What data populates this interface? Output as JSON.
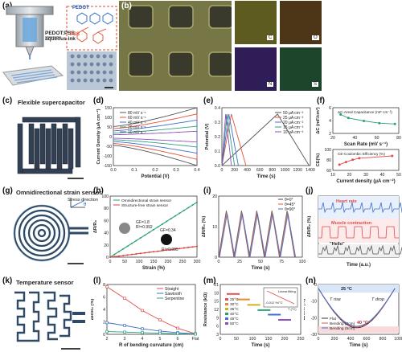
{
  "labels": {
    "a": "(a)",
    "b": "(b)",
    "c": "(c)",
    "d": "(d)",
    "e": "(e)",
    "f": "(f)",
    "g": "(g)",
    "h": "(h)",
    "i": "(i)",
    "j": "(j)",
    "k": "(k)",
    "l": "(l)",
    "m": "(m)",
    "n": "(n)"
  },
  "a": {
    "ink": "PEDOT:PSS aqueous ink",
    "pedot": "PEDOT",
    "pss": "PSS"
  },
  "b": {
    "maps": [
      "C",
      "O",
      "N",
      "S"
    ]
  },
  "c": {
    "title": "Flexible supercapacitor"
  },
  "g": {
    "title": "Omnidirectional strain sensor",
    "stress": "Stress direction",
    "theta": "θ"
  },
  "k": {
    "title": "Temperature sensor"
  },
  "chart_data": [
    {
      "panel": "d",
      "type": "line",
      "xlabel": "Potential (V)",
      "ylabel": "Current Density (μA cm⁻²)",
      "xticks": [
        "0.0",
        "0.1",
        "0.2",
        "0.3",
        "0.4"
      ],
      "yticks": [
        "-150",
        "-100",
        "-50",
        "0",
        "50",
        "100",
        "150"
      ],
      "xlim": [
        0,
        0.4
      ],
      "ylim": [
        -150,
        150
      ],
      "series": [
        {
          "name": "80 mV s⁻¹",
          "color": "#555555",
          "peak": 150
        },
        {
          "name": "60 mV s⁻¹",
          "color": "#e0553a",
          "peak": 118
        },
        {
          "name": "40 mV s⁻¹",
          "color": "#3d6fcf",
          "peak": 86
        },
        {
          "name": "20 mV s⁻¹",
          "color": "#2aa07a",
          "peak": 54
        },
        {
          "name": "10 mV s⁻¹",
          "color": "#8a4fbf",
          "peak": 28
        }
      ]
    },
    {
      "panel": "e",
      "type": "line",
      "xlabel": "Time (s)",
      "ylabel": "Potential (V)",
      "xticks": [
        "0",
        "200",
        "400",
        "600",
        "800",
        "1000",
        "1200",
        "1400"
      ],
      "yticks": [
        "0.0",
        "0.1",
        "0.2",
        "0.3",
        "0.4"
      ],
      "xlim": [
        0,
        1400
      ],
      "ylim": [
        0,
        0.45
      ],
      "series": [
        {
          "name": "50 μA cm⁻²",
          "color": "#555555",
          "t": [
            880,
            1380
          ]
        },
        {
          "name": "25 μA cm⁻²",
          "color": "#e0553a",
          "t": [
            150,
            380
          ]
        },
        {
          "name": "20 μA cm⁻²",
          "color": "#3d6fcf",
          "t": [
            110,
            260
          ]
        },
        {
          "name": "15 μA cm⁻²",
          "color": "#2aa07a",
          "t": [
            80,
            200
          ]
        },
        {
          "name": "10 μA cm⁻²",
          "color": "#8a4fbf",
          "t": [
            60,
            150
          ]
        }
      ]
    },
    {
      "panel": "f-top",
      "type": "line",
      "xlabel": "Scan Rate (mV s⁻¹)",
      "ylabel": "ΔC (mF/cm²)",
      "legend": "ΔC-Areal Capacitance (mF cm⁻²)",
      "xticks": [
        "20",
        "40",
        "60",
        "80"
      ],
      "yticks": [
        "2",
        "4",
        "6"
      ],
      "x": [
        10,
        20,
        40,
        60,
        80
      ],
      "y": [
        5.4,
        4.6,
        3.9,
        3.4,
        3.2
      ],
      "xlim": [
        0,
        85
      ],
      "ylim": [
        1,
        7
      ]
    },
    {
      "panel": "f-bottom",
      "type": "line",
      "xlabel": "Current density (μA cm⁻²)",
      "ylabel": "CE(%)",
      "legend": "CE-Coulombic Efficiency (%)",
      "xticks": [
        "10",
        "20",
        "30",
        "40",
        "50"
      ],
      "yticks": [
        "60",
        "80",
        "100"
      ],
      "x": [
        10,
        15,
        20,
        25,
        50
      ],
      "y": [
        65,
        72,
        78,
        82,
        88
      ],
      "xlim": [
        5,
        55
      ],
      "ylim": [
        50,
        105
      ]
    },
    {
      "panel": "h",
      "type": "line",
      "xlabel": "Strain (%)",
      "ylabel": "ΔR/R₀",
      "xticks": [
        "0",
        "50",
        "100",
        "150",
        "200",
        "250",
        "300"
      ],
      "yticks": [
        "0",
        "20",
        "40",
        "60",
        "80",
        "100"
      ],
      "xlim": [
        0,
        300
      ],
      "ylim": [
        0,
        110
      ],
      "legend": [
        "Omnidirectional strain sensor",
        "Structure-free strain sensor"
      ],
      "annotations": [
        "GF=1.8",
        "R²=0.992",
        "GF=0.34",
        "R²=0.995"
      ],
      "series": [
        {
          "name": "Omnidirectional strain sensor",
          "color": "#2aa07a",
          "slope": 0.33
        },
        {
          "name": "Structure-free strain sensor",
          "color": "#d94040",
          "slope": 0.065
        }
      ]
    },
    {
      "panel": "i",
      "type": "line",
      "xlabel": "Time (s)",
      "ylabel": "ΔR/R₀ (%)",
      "xticks": [
        "0",
        "25",
        "50",
        "75",
        "100"
      ],
      "yticks": [
        "0",
        "10",
        "20"
      ],
      "xlim": [
        0,
        110
      ],
      "ylim": [
        0,
        25
      ],
      "legend": [
        "θ=0°",
        "θ=45°",
        "θ=90°"
      ],
      "colors": [
        "#444444",
        "#e0553a",
        "#3d6fcf"
      ],
      "cycles": 5,
      "peak": 19
    },
    {
      "panel": "j",
      "type": "line",
      "xlabel": "Time (a.u.)",
      "ylabel": "ΔR/R₀ (%)",
      "annotations": [
        "Heart rate",
        "Muscle contraction",
        "\"Hello\""
      ],
      "colors": [
        "#3d6fcf",
        "#e04a4a",
        "#555555"
      ]
    },
    {
      "panel": "l",
      "type": "line",
      "xlabel": "R of bending curvature (cm)",
      "ylabel": "ΔR/R₀ (%)",
      "xticks": [
        "2",
        "3",
        "4",
        "5",
        "6",
        "Flat"
      ],
      "yticks": [
        "0",
        "2",
        "4",
        "6",
        "8"
      ],
      "ylim": [
        0,
        9
      ],
      "series": [
        {
          "name": "Straight",
          "color": "#e05050",
          "x": [
            2,
            3,
            4,
            5,
            6,
            7
          ],
          "y": [
            8.6,
            6.5,
            4.3,
            2.6,
            1.1,
            0.1
          ]
        },
        {
          "name": "Sawtooth",
          "color": "#3d6fcf",
          "x": [
            2,
            3,
            4,
            5,
            6,
            7
          ],
          "y": [
            2.1,
            1.6,
            1.0,
            0.6,
            0.3,
            0.1
          ]
        },
        {
          "name": "Serpentine",
          "color": "#2aa07a",
          "x": [
            2,
            3,
            4,
            5,
            6,
            7
          ],
          "y": [
            0.5,
            0.4,
            0.3,
            0.2,
            0.1,
            0.05
          ]
        }
      ]
    },
    {
      "panel": "m",
      "type": "scatter",
      "xlabel": "Time (s)",
      "ylabel": "Resistance (kΩ)",
      "xticks": [
        "0",
        "50",
        "100",
        "150",
        "200",
        "250"
      ],
      "yticks": [
        "3",
        "6",
        "9",
        "12",
        "15",
        "18",
        "21"
      ],
      "xlim": [
        0,
        250
      ],
      "ylim": [
        2,
        22
      ],
      "series": [
        {
          "name": "25°C",
          "color": "#e05050",
          "y": 18.2
        },
        {
          "name": "30°C",
          "color": "#e08a3a",
          "y": 16.0
        },
        {
          "name": "35°C",
          "color": "#d0b020",
          "y": 13.8
        },
        {
          "name": "40°C",
          "color": "#2aa07a",
          "y": 11.7
        },
        {
          "name": "45°C",
          "color": "#3d6fcf",
          "y": 9.9
        },
        {
          "name": "50°C",
          "color": "#8a4fbf",
          "y": 7.8
        }
      ],
      "inset": {
        "annotation": "-0.012 %/°C",
        "label": "Linear fitting",
        "xlabel": "T (°C)"
      }
    },
    {
      "panel": "n",
      "type": "line",
      "xlabel": "Time (s)",
      "ylabel": "ΔR/R₀ (%)",
      "xticks": [
        "0",
        "200",
        "400",
        "600",
        "800",
        "1000"
      ],
      "yticks": [
        "-30",
        "-20",
        "-10",
        "0"
      ],
      "xlim": [
        0,
        1050
      ],
      "ylim": [
        -35,
        3
      ],
      "annotations": [
        "25 °C",
        "40 °C",
        "T rise",
        "T drop"
      ],
      "series": [
        {
          "name": "Flat",
          "color": "#333333"
        },
        {
          "name": "Bending (2cm)",
          "color": "#e05050"
        },
        {
          "name": "Bending (5cm)",
          "color": "#3d6fcf"
        }
      ]
    }
  ]
}
